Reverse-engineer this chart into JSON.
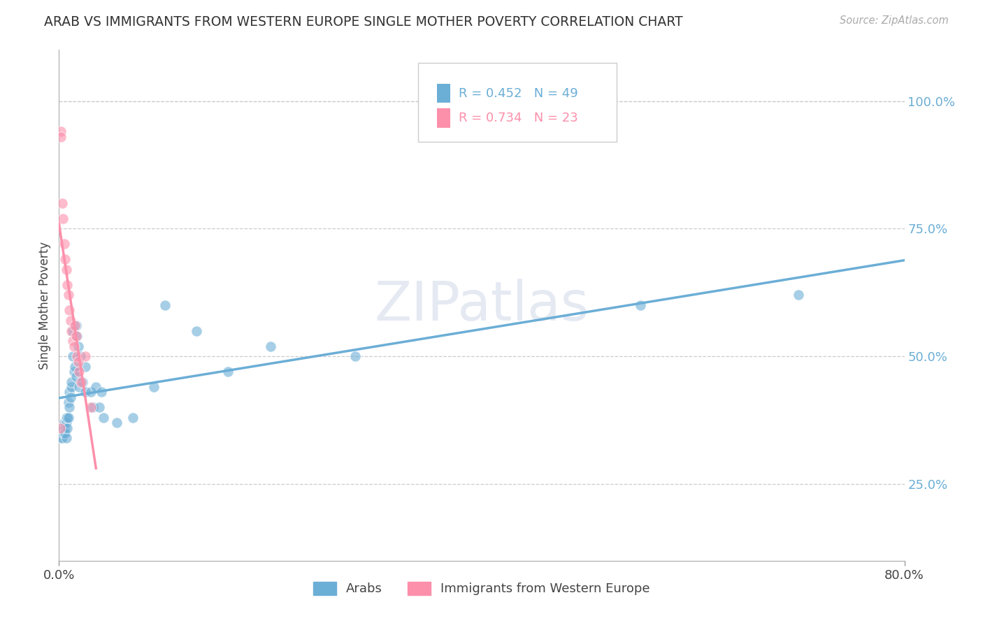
{
  "title": "ARAB VS IMMIGRANTS FROM WESTERN EUROPE SINGLE MOTHER POVERTY CORRELATION CHART",
  "source": "Source: ZipAtlas.com",
  "ylabel": "Single Mother Poverty",
  "xlim": [
    0.0,
    0.8
  ],
  "ylim": [
    0.1,
    1.1
  ],
  "ytick_right_labels": [
    "100.0%",
    "75.0%",
    "50.0%",
    "25.0%"
  ],
  "ytick_right_values": [
    1.0,
    0.75,
    0.5,
    0.25
  ],
  "arab_color": "#6baed6",
  "immigrant_color": "#fc8faa",
  "arab_R": 0.452,
  "arab_N": 49,
  "immigrant_R": 0.734,
  "immigrant_N": 23,
  "background_color": "#ffffff",
  "watermark_text": "ZIPatlas",
  "arab_x": [
    0.002,
    0.003,
    0.004,
    0.004,
    0.005,
    0.005,
    0.006,
    0.006,
    0.007,
    0.007,
    0.007,
    0.008,
    0.008,
    0.009,
    0.009,
    0.01,
    0.01,
    0.011,
    0.012,
    0.012,
    0.013,
    0.013,
    0.014,
    0.015,
    0.016,
    0.016,
    0.017,
    0.018,
    0.019,
    0.02,
    0.022,
    0.025,
    0.025,
    0.03,
    0.032,
    0.035,
    0.038,
    0.04,
    0.042,
    0.055,
    0.07,
    0.09,
    0.1,
    0.13,
    0.16,
    0.2,
    0.28,
    0.55,
    0.7
  ],
  "arab_y": [
    0.34,
    0.34,
    0.35,
    0.36,
    0.37,
    0.35,
    0.36,
    0.35,
    0.38,
    0.37,
    0.34,
    0.38,
    0.36,
    0.38,
    0.41,
    0.4,
    0.43,
    0.42,
    0.44,
    0.45,
    0.5,
    0.55,
    0.47,
    0.48,
    0.56,
    0.46,
    0.54,
    0.52,
    0.44,
    0.5,
    0.45,
    0.43,
    0.48,
    0.43,
    0.4,
    0.44,
    0.4,
    0.43,
    0.38,
    0.37,
    0.38,
    0.44,
    0.6,
    0.55,
    0.47,
    0.52,
    0.5,
    0.6,
    0.62
  ],
  "imm_x": [
    0.001,
    0.002,
    0.002,
    0.003,
    0.004,
    0.005,
    0.006,
    0.007,
    0.008,
    0.009,
    0.01,
    0.011,
    0.012,
    0.013,
    0.014,
    0.015,
    0.016,
    0.017,
    0.018,
    0.019,
    0.021,
    0.025,
    0.03
  ],
  "imm_y": [
    0.36,
    0.94,
    0.93,
    0.8,
    0.77,
    0.72,
    0.69,
    0.67,
    0.64,
    0.62,
    0.59,
    0.57,
    0.55,
    0.53,
    0.52,
    0.56,
    0.54,
    0.5,
    0.49,
    0.47,
    0.45,
    0.5,
    0.4
  ]
}
